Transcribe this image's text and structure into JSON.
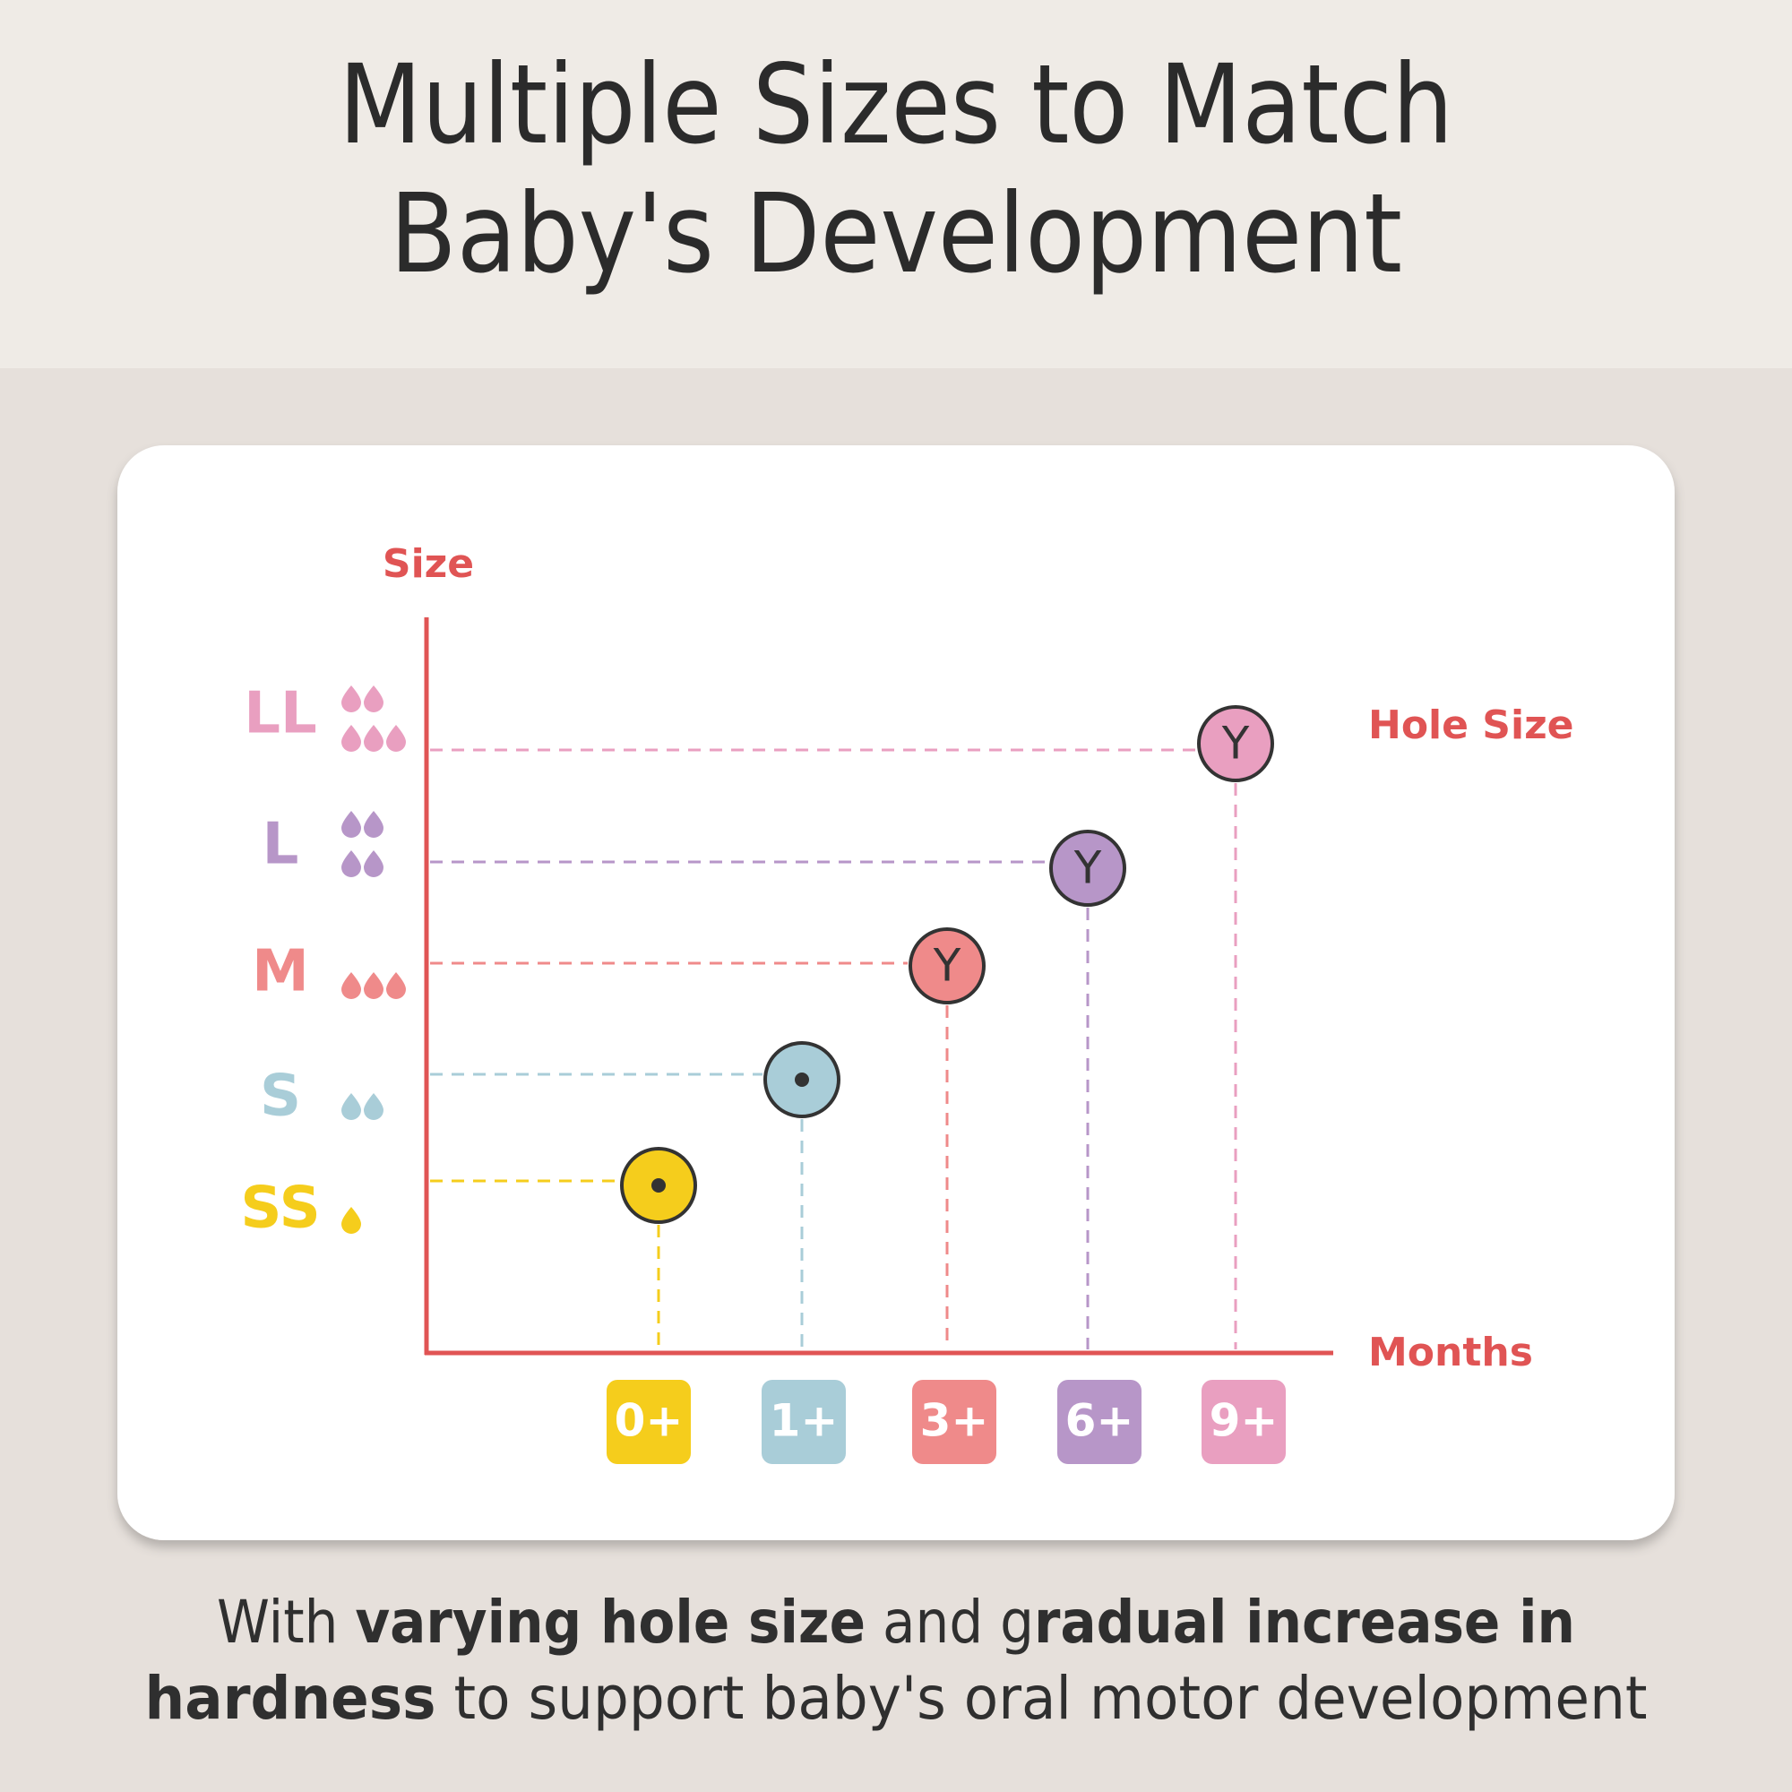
{
  "header": {
    "title": [
      "Multiple Sizes to Match",
      "Baby's Development"
    ]
  },
  "diagram": {
    "y_label": "Size",
    "x_label": "Months",
    "series_label": "Hole Size",
    "rows": [
      {
        "size": "SS",
        "month": "0+",
        "color": "#f5cd1c",
        "drops": 1,
        "hole": null
      },
      {
        "size": "S",
        "month": "1+",
        "color": "#a9cdd8",
        "drops": 2,
        "hole": null
      },
      {
        "size": "M",
        "month": "3+",
        "color": "#ef8a8a",
        "drops": 3,
        "hole": "Y"
      },
      {
        "size": "L",
        "month": "6+",
        "color": "#b796c8",
        "drops": 4,
        "hole": "Y"
      },
      {
        "size": "LL",
        "month": "9+",
        "color": "#e99fc0",
        "drops": 5,
        "hole": "Y"
      }
    ]
  },
  "caption": {
    "lines": [
      [
        {
          "text": "With ",
          "bold": false
        },
        {
          "text": "varying hole size",
          "bold": true
        },
        {
          "text": " and g",
          "bold": false
        },
        {
          "text": "radual increase in",
          "bold": true
        }
      ],
      [
        {
          "text": "hardness",
          "bold": true
        },
        {
          "text": " to support baby's oral motor development",
          "bold": false
        }
      ]
    ]
  }
}
